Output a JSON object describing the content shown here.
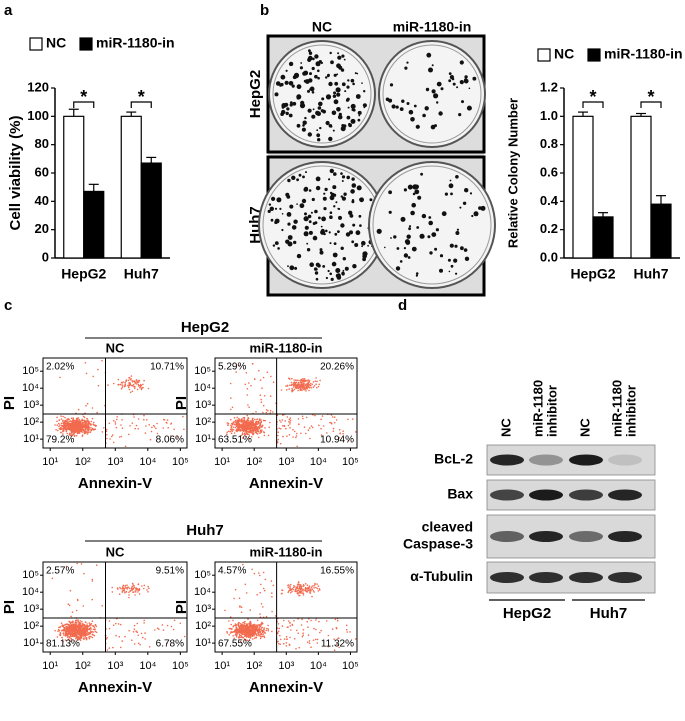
{
  "panel_labels": [
    "a",
    "b",
    "c",
    "d"
  ],
  "chart_data": [
    {
      "type": "bar",
      "ylabel": "Cell viability (%)",
      "categories": [
        "HepG2",
        "Huh7"
      ],
      "series": [
        {
          "name": "NC",
          "color": "#ffffff",
          "values": [
            100,
            100
          ],
          "errors": [
            5,
            3
          ]
        },
        {
          "name": "miR-1180-in",
          "color": "#000000",
          "values": [
            47,
            67
          ],
          "errors": [
            5,
            4
          ]
        }
      ],
      "ylim": [
        0,
        120
      ],
      "yticks": [
        0,
        20,
        40,
        60,
        80,
        100,
        120
      ],
      "significance": [
        "*",
        "*"
      ]
    },
    {
      "type": "bar",
      "ylabel": "Relative Colony Number",
      "categories": [
        "HepG2",
        "Huh7"
      ],
      "series": [
        {
          "name": "NC",
          "color": "#ffffff",
          "values": [
            1.0,
            1.0
          ],
          "errors": [
            0.03,
            0.02
          ]
        },
        {
          "name": "miR-1180-in",
          "color": "#000000",
          "values": [
            0.29,
            0.38
          ],
          "errors": [
            0.03,
            0.06
          ]
        }
      ],
      "ylim": [
        0,
        1.2
      ],
      "yticks": [
        {
          "value": 0,
          "label": "0.0"
        },
        0.2,
        0.4,
        0.6,
        0.8,
        {
          "value": 1,
          "label": "1.0"
        },
        1.2
      ],
      "significance": [
        "*",
        "*"
      ]
    },
    {
      "type": "quadrant-scatter",
      "title": "NC",
      "xlabel": "Annexin-V",
      "ylabel": "PI",
      "color": "#f26b4f",
      "log_scale": true,
      "xlim": [
        6,
        160000
      ],
      "ylim": [
        3,
        600000
      ],
      "xticks": [
        {
          "value": 10,
          "label": "10¹"
        },
        {
          "value": 100,
          "label": "10²"
        },
        {
          "value": 1000,
          "label": "10³"
        },
        {
          "value": 10000,
          "label": "10⁴"
        },
        {
          "value": 100000,
          "label": "10⁵"
        }
      ],
      "yticks": [
        {
          "value": 10,
          "label": "10¹"
        },
        {
          "value": 100,
          "label": "10²"
        },
        {
          "value": 1000,
          "label": "10³"
        },
        {
          "value": 10000,
          "label": "10⁴"
        },
        {
          "value": 100000,
          "label": "10⁵"
        }
      ],
      "gate": [
        500,
        300
      ],
      "quadrants": {
        "values": [
          2.02,
          10.71,
          79.2,
          8.06
        ],
        "value_labels": [
          "2.02%",
          "10.71%",
          "79.2%",
          "8.06%"
        ]
      }
    },
    {
      "type": "quadrant-scatter",
      "title": "miR-1180-in",
      "xlabel": "Annexin-V",
      "ylabel": "PI",
      "color": "#f26b4f",
      "log_scale": true,
      "xlim": [
        6,
        160000
      ],
      "ylim": [
        3,
        600000
      ],
      "xticks": [
        {
          "value": 10,
          "label": "10¹"
        },
        {
          "value": 100,
          "label": "10²"
        },
        {
          "value": 1000,
          "label": "10³"
        },
        {
          "value": 10000,
          "label": "10⁴"
        },
        {
          "value": 100000,
          "label": "10⁵"
        }
      ],
      "yticks": [
        {
          "value": 10,
          "label": "10¹"
        },
        {
          "value": 100,
          "label": "10²"
        },
        {
          "value": 1000,
          "label": "10³"
        },
        {
          "value": 10000,
          "label": "10⁴"
        },
        {
          "value": 100000,
          "label": "10⁵"
        }
      ],
      "gate": [
        500,
        300
      ],
      "quadrants": {
        "values": [
          5.29,
          20.26,
          63.51,
          10.94
        ],
        "value_labels": [
          "5.29%",
          "20.26%",
          "63.51%",
          "10.94%"
        ]
      }
    },
    {
      "type": "quadrant-scatter",
      "title": "NC",
      "xlabel": "Annexin-V",
      "ylabel": "PI",
      "color": "#f26b4f",
      "log_scale": true,
      "xlim": [
        6,
        160000
      ],
      "ylim": [
        3,
        600000
      ],
      "xticks": [
        {
          "value": 10,
          "label": "10¹"
        },
        {
          "value": 100,
          "label": "10²"
        },
        {
          "value": 1000,
          "label": "10³"
        },
        {
          "value": 10000,
          "label": "10⁴"
        },
        {
          "value": 100000,
          "label": "10⁵"
        }
      ],
      "yticks": [
        {
          "value": 10,
          "label": "10¹"
        },
        {
          "value": 100,
          "label": "10²"
        },
        {
          "value": 1000,
          "label": "10³"
        },
        {
          "value": 10000,
          "label": "10⁴"
        },
        {
          "value": 100000,
          "label": "10⁵"
        }
      ],
      "gate": [
        500,
        300
      ],
      "quadrants": {
        "values": [
          2.57,
          9.51,
          81.13,
          6.78
        ],
        "value_labels": [
          "2.57%",
          "9.51%",
          "81.13%",
          "6.78%"
        ]
      }
    },
    {
      "type": "quadrant-scatter",
      "title": "miR-1180-in",
      "xlabel": "Annexin-V",
      "ylabel": "PI",
      "color": "#f26b4f",
      "log_scale": true,
      "xlim": [
        6,
        160000
      ],
      "ylim": [
        3,
        600000
      ],
      "xticks": [
        {
          "value": 10,
          "label": "10¹"
        },
        {
          "value": 100,
          "label": "10²"
        },
        {
          "value": 1000,
          "label": "10³"
        },
        {
          "value": 10000,
          "label": "10⁴"
        },
        {
          "value": 100000,
          "label": "10⁵"
        }
      ],
      "yticks": [
        {
          "value": 10,
          "label": "10¹"
        },
        {
          "value": 100,
          "label": "10²"
        },
        {
          "value": 1000,
          "label": "10³"
        },
        {
          "value": 10000,
          "label": "10⁴"
        },
        {
          "value": 100000,
          "label": "10⁵"
        }
      ],
      "gate": [
        500,
        300
      ],
      "quadrants": {
        "values": [
          4.57,
          16.55,
          67.55,
          11.32
        ],
        "value_labels": [
          "4.57%",
          "16.55%",
          "67.55%",
          "11.32%"
        ]
      }
    }
  ],
  "flow_groups": [
    "HepG2",
    "Huh7"
  ],
  "colony_photos": {
    "columns": [
      "NC",
      "miR-1180-in"
    ],
    "rows": [
      "HepG2",
      "Huh7"
    ]
  },
  "western_blot": {
    "lanes": [
      [
        "NC"
      ],
      [
        "miR-1180",
        "inhibitor"
      ],
      [
        "NC"
      ],
      [
        "miR-1180",
        "inhibitor"
      ]
    ],
    "rows": [
      [
        "BcL-2"
      ],
      [
        "Bax"
      ],
      [
        "cleaved",
        "Caspase-3"
      ],
      [
        "α-Tubulin"
      ]
    ],
    "groups": [
      "HepG2",
      "Huh7"
    ]
  }
}
